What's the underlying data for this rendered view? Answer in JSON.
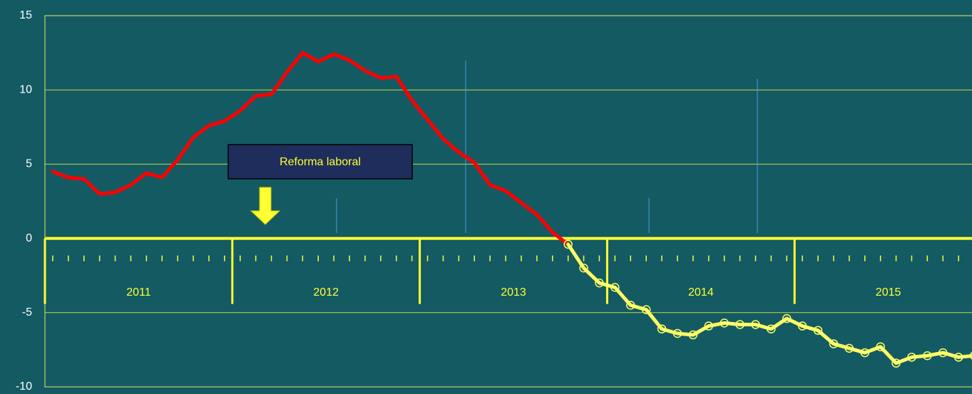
{
  "chart_data": {
    "type": "line",
    "annotation": "Reforma laboral",
    "years": [
      "2011",
      "2012",
      "2013",
      "2014",
      "2015"
    ],
    "ylim": [
      -10,
      15
    ],
    "yticks": [
      -10,
      -5,
      0,
      5,
      10,
      15
    ],
    "grid": true,
    "series": [
      {
        "color": "#ff0000",
        "markers": false,
        "values": [
          4.5,
          4.1,
          4.0,
          3.0,
          3.1,
          3.6,
          4.4,
          4.1,
          5.3,
          6.8,
          7.6,
          7.9,
          8.6,
          9.6,
          9.7,
          11.2,
          12.5,
          11.9,
          12.4,
          12.0,
          11.3,
          10.8,
          10.9,
          9.3,
          8.0,
          6.7,
          5.8,
          5.1,
          3.6,
          3.2,
          2.4,
          1.6,
          0.4,
          -0.4,
          null,
          null,
          null,
          null,
          null,
          null,
          null,
          null,
          null,
          null,
          null,
          null,
          null,
          null,
          null,
          null,
          null,
          null,
          null,
          null,
          null,
          null,
          null,
          null,
          null,
          null
        ]
      },
      {
        "color": "#ffff66",
        "markers": true,
        "values": [
          null,
          null,
          null,
          null,
          null,
          null,
          null,
          null,
          null,
          null,
          null,
          null,
          null,
          null,
          null,
          null,
          null,
          null,
          null,
          null,
          null,
          null,
          null,
          null,
          null,
          null,
          null,
          null,
          null,
          null,
          null,
          null,
          null,
          -0.4,
          -2.0,
          -3.0,
          -3.3,
          -4.5,
          -4.8,
          -6.1,
          -6.4,
          -6.5,
          -5.9,
          -5.7,
          -5.8,
          -5.8,
          -6.1,
          -5.4,
          -5.9,
          -6.2,
          -7.1,
          -7.4,
          -7.7,
          -7.3,
          -8.4,
          -8.0,
          -7.9,
          -7.7,
          -8.0,
          -7.9
        ]
      }
    ]
  }
}
